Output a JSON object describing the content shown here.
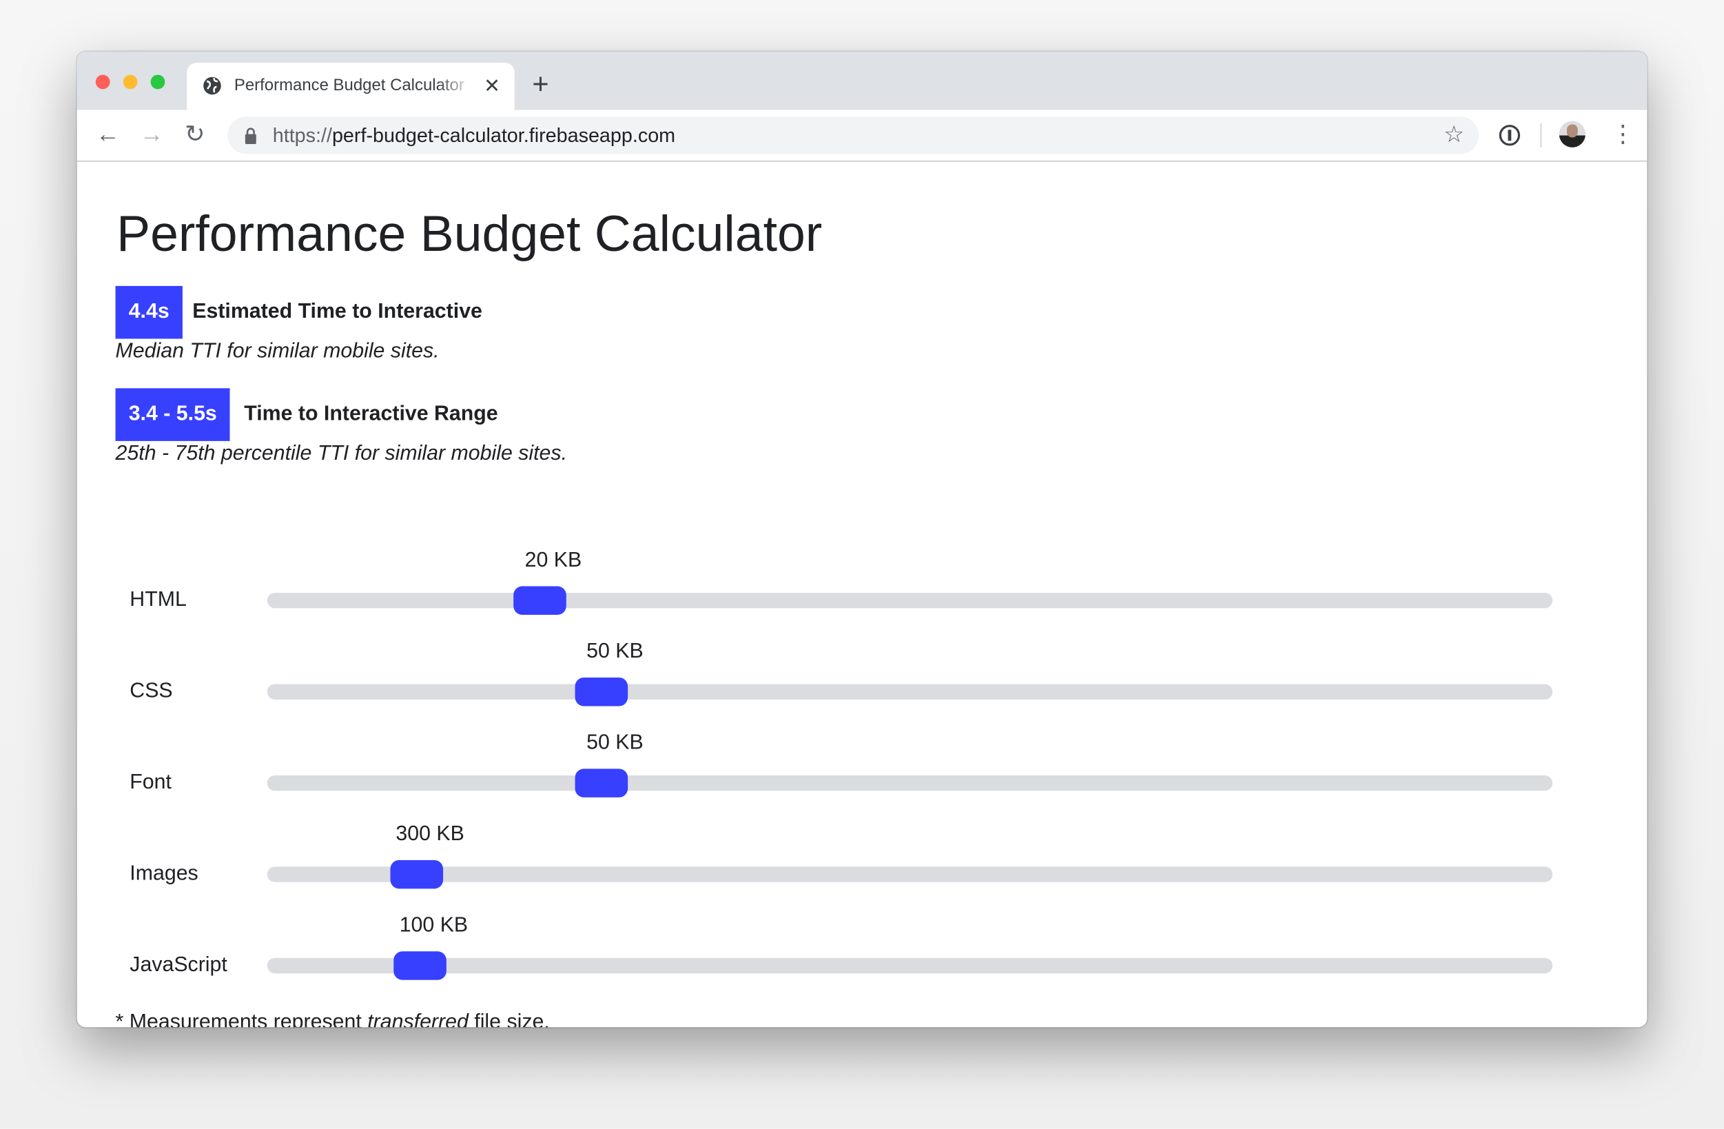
{
  "browser": {
    "tab_title": "Performance Budget Calculator",
    "url_scheme": "https://",
    "url_host": "perf-budget-calculator.firebaseapp.com",
    "icons": [
      "globe-icon",
      "close-icon",
      "new-tab-icon",
      "back-icon",
      "forward-icon",
      "reload-icon",
      "lock-icon",
      "star-icon",
      "password-manager-icon",
      "avatar",
      "more-icon"
    ]
  },
  "page": {
    "title": "Performance Budget Calculator",
    "metrics": [
      {
        "badge": "4.4s",
        "label": "Estimated Time to Interactive",
        "description": "Median TTI for similar mobile sites."
      },
      {
        "badge": "3.4 - 5.5s",
        "label": "Time to Interactive Range",
        "description": "25th - 75th percentile TTI for similar mobile sites."
      }
    ],
    "sliders": [
      {
        "label": "HTML",
        "value": "20 KB",
        "position_percent": 20
      },
      {
        "label": "CSS",
        "value": "50 KB",
        "position_percent": 25
      },
      {
        "label": "Font",
        "value": "50 KB",
        "position_percent": 25
      },
      {
        "label": "Images",
        "value": "300 KB",
        "position_percent": 10
      },
      {
        "label": "JavaScript",
        "value": "100 KB",
        "position_percent": 10.3
      }
    ],
    "footnote": {
      "prefix": "* Measurements represent ",
      "emphasis": "transferred",
      "suffix": " file size."
    }
  },
  "colors": {
    "accent": "#3740ff",
    "track": "#dadce0",
    "tabbar": "#dee1e6"
  }
}
